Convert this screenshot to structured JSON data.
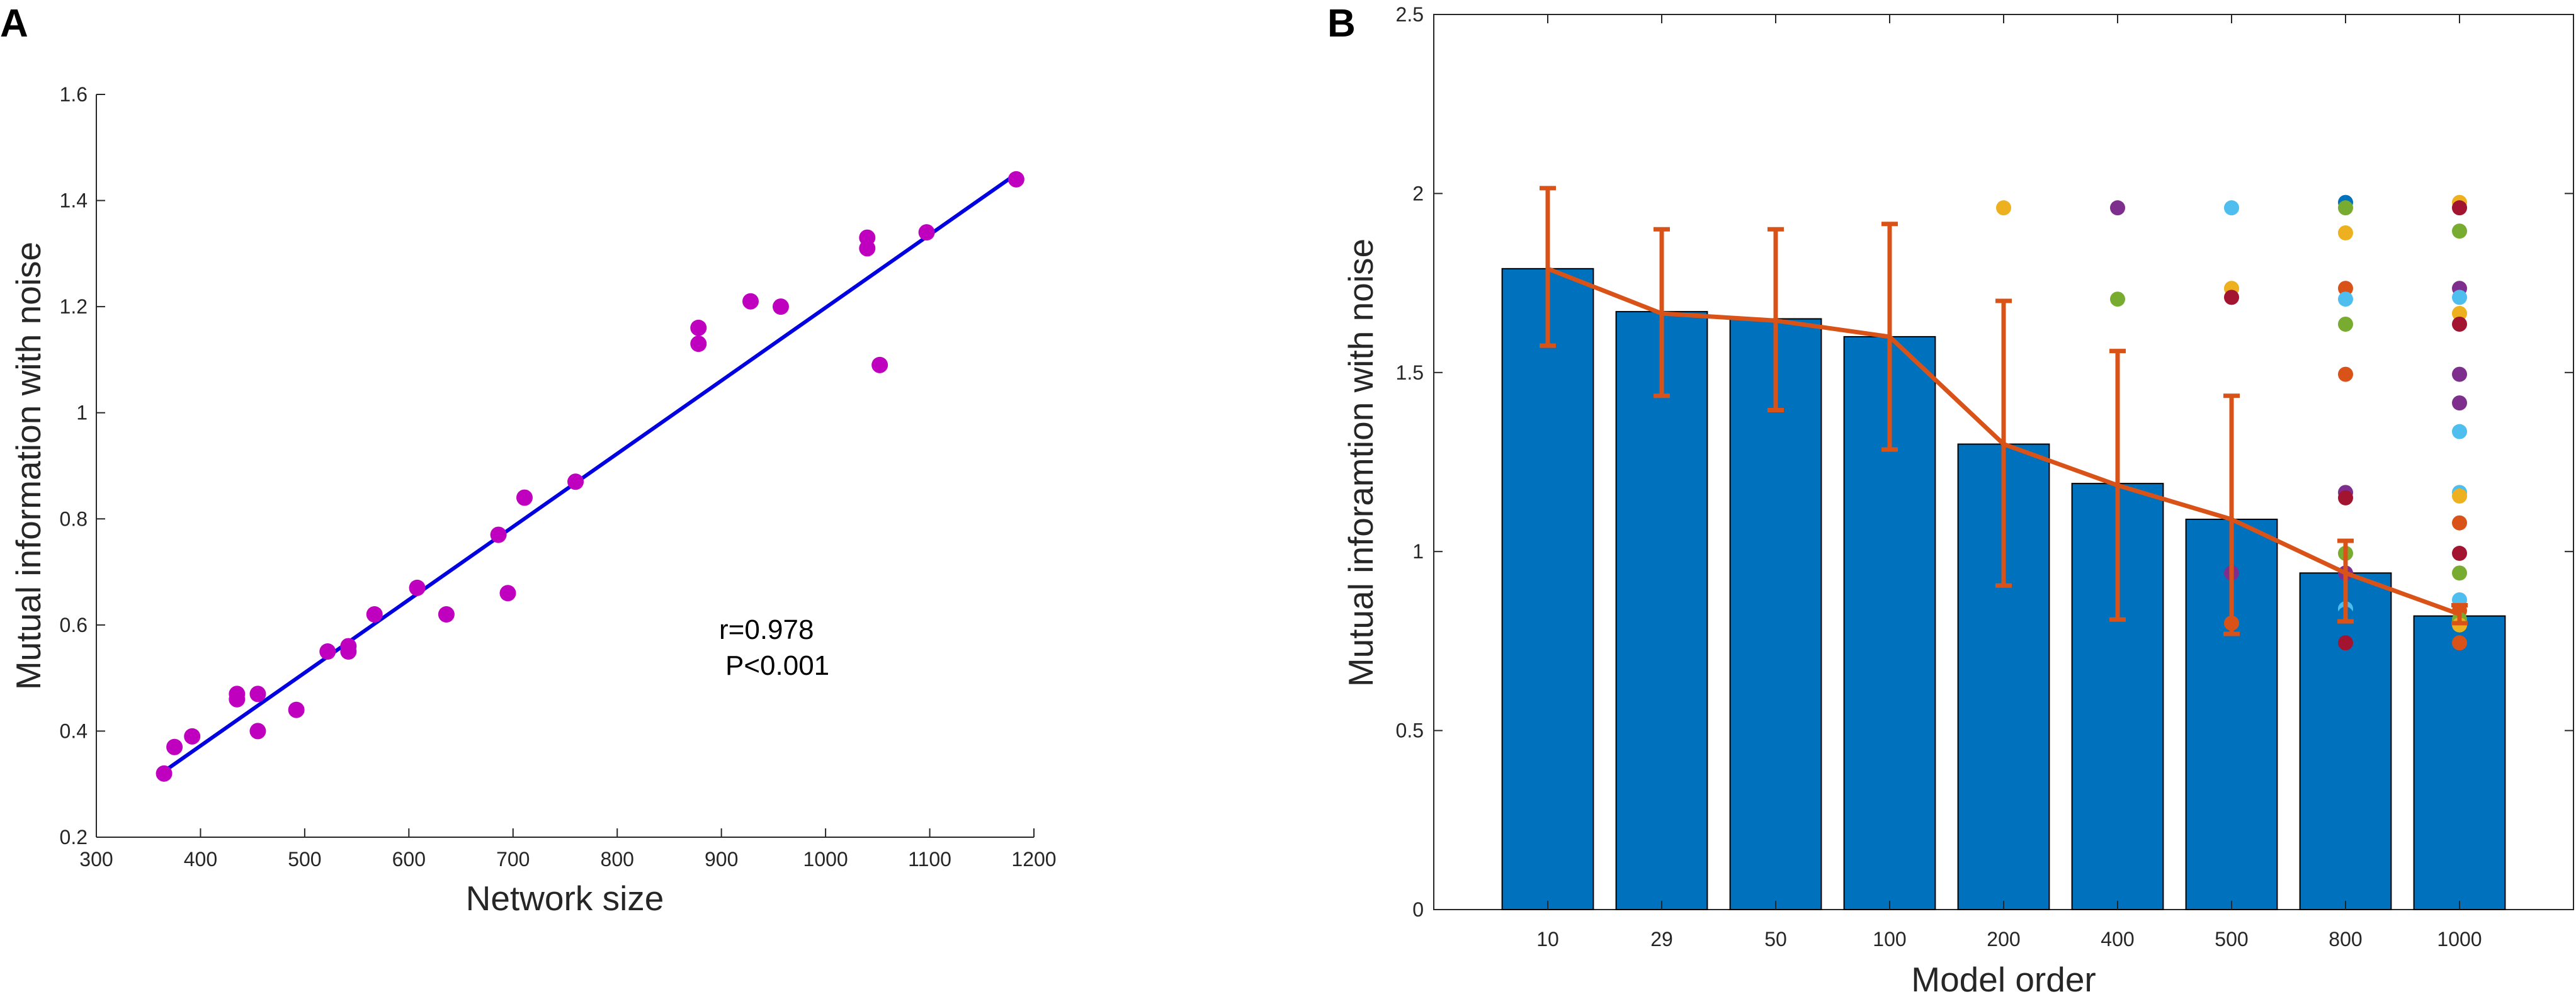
{
  "colors": {
    "scatter": "#bf00bf",
    "fit_line": "#0000e0",
    "bar_fill": "#0072bd",
    "mean_line": "#d95319",
    "axis": "#262626",
    "dot_palette": [
      "#0072bd",
      "#d95319",
      "#edb120",
      "#7e2f8e",
      "#77ac30",
      "#4dbeee",
      "#a2142f"
    ]
  },
  "chart_data": [
    {
      "panel_label": "A",
      "type": "scatter",
      "title": "",
      "xlabel": "Network size",
      "ylabel": "Mutual information with noise",
      "xlim": [
        300,
        1200
      ],
      "ylim": [
        0.2,
        1.6
      ],
      "xticks": [
        300,
        400,
        500,
        600,
        700,
        800,
        900,
        1000,
        1100,
        1200
      ],
      "yticks": [
        0.2,
        0.4,
        0.6,
        0.8,
        1,
        1.2,
        1.4,
        1.6
      ],
      "xtick_labels": [
        "300",
        "400",
        "500",
        "600",
        "700",
        "800",
        "900",
        "1000",
        "1100",
        "1200"
      ],
      "ytick_labels": [
        "0.2",
        "0.4",
        "0.6",
        "0.8",
        "1",
        "1.2",
        "1.4",
        "1.6"
      ],
      "points": [
        {
          "x": 365,
          "y": 0.32
        },
        {
          "x": 375,
          "y": 0.37
        },
        {
          "x": 392,
          "y": 0.39
        },
        {
          "x": 435,
          "y": 0.47
        },
        {
          "x": 435,
          "y": 0.46
        },
        {
          "x": 455,
          "y": 0.47
        },
        {
          "x": 455,
          "y": 0.4
        },
        {
          "x": 492,
          "y": 0.44
        },
        {
          "x": 522,
          "y": 0.55
        },
        {
          "x": 542,
          "y": 0.56
        },
        {
          "x": 542,
          "y": 0.55
        },
        {
          "x": 567,
          "y": 0.62
        },
        {
          "x": 608,
          "y": 0.67
        },
        {
          "x": 636,
          "y": 0.62
        },
        {
          "x": 686,
          "y": 0.77
        },
        {
          "x": 695,
          "y": 0.66
        },
        {
          "x": 711,
          "y": 0.84
        },
        {
          "x": 760,
          "y": 0.87
        },
        {
          "x": 878,
          "y": 1.16
        },
        {
          "x": 878,
          "y": 1.13
        },
        {
          "x": 928,
          "y": 1.21
        },
        {
          "x": 957,
          "y": 1.2
        },
        {
          "x": 1040,
          "y": 1.33
        },
        {
          "x": 1040,
          "y": 1.31
        },
        {
          "x": 1052,
          "y": 1.09
        },
        {
          "x": 1097,
          "y": 1.34
        },
        {
          "x": 1183,
          "y": 1.44
        }
      ],
      "fit_line": {
        "x": [
          362,
          1183
        ],
        "y": [
          0.32,
          1.45
        ]
      },
      "annotation_lines": [
        "r=0.978",
        "P<0.001"
      ]
    },
    {
      "panel_label": "B",
      "type": "bar",
      "title": "",
      "xlabel": "Model order",
      "ylabel": "Mutual inforamtion with noise",
      "categories": [
        "10",
        "29",
        "50",
        "100",
        "200",
        "400",
        "500",
        "800",
        "1000"
      ],
      "values": [
        1.79,
        1.67,
        1.65,
        1.6,
        1.3,
        1.19,
        1.09,
        0.94,
        0.82
      ],
      "ylim": [
        0,
        2.5
      ],
      "yticks": [
        0,
        0.5,
        1,
        1.5,
        2,
        2.5
      ],
      "ytick_labels": [
        "0",
        "0.5",
        "1",
        "1.5",
        "2",
        "2.5"
      ],
      "mean_line": [
        1.79,
        1.665,
        1.645,
        1.6,
        1.3,
        1.185,
        1.09,
        0.94,
        0.825
      ],
      "error_low": [
        1.575,
        1.435,
        1.395,
        1.285,
        0.905,
        0.81,
        0.77,
        0.805,
        0.8
      ],
      "error_high": [
        2.015,
        1.9,
        1.9,
        1.915,
        1.7,
        1.56,
        1.435,
        1.03,
        0.85
      ],
      "dots": [
        {
          "category": "200",
          "points": [
            [
              1.96,
              2
            ]
          ]
        },
        {
          "category": "400",
          "points": [
            [
              1.96,
              3
            ],
            [
              1.705,
              4
            ]
          ]
        },
        {
          "category": "500",
          "points": [
            [
              1.96,
              5
            ],
            [
              1.735,
              2
            ],
            [
              1.71,
              6
            ],
            [
              0.94,
              3
            ],
            [
              0.8,
              1
            ]
          ]
        },
        {
          "category": "800",
          "points": [
            [
              1.975,
              0
            ],
            [
              1.96,
              4
            ],
            [
              1.89,
              2
            ],
            [
              1.735,
              1
            ],
            [
              1.705,
              5
            ],
            [
              1.635,
              4
            ],
            [
              1.495,
              1
            ],
            [
              1.165,
              3
            ],
            [
              1.15,
              6
            ],
            [
              0.995,
              4
            ],
            [
              0.94,
              3
            ],
            [
              0.84,
              5
            ],
            [
              0.825,
              0
            ],
            [
              0.745,
              6
            ]
          ]
        },
        {
          "category": "1000",
          "points": [
            [
              1.975,
              2
            ],
            [
              1.96,
              6
            ],
            [
              1.895,
              4
            ],
            [
              1.735,
              3
            ],
            [
              1.71,
              5
            ],
            [
              1.665,
              2
            ],
            [
              1.635,
              6
            ],
            [
              1.495,
              3
            ],
            [
              1.415,
              3
            ],
            [
              1.335,
              5
            ],
            [
              1.165,
              5
            ],
            [
              1.155,
              2
            ],
            [
              1.08,
              1
            ],
            [
              0.995,
              6
            ],
            [
              0.94,
              4
            ],
            [
              0.865,
              5
            ],
            [
              0.835,
              1
            ],
            [
              0.81,
              4
            ],
            [
              0.795,
              2
            ],
            [
              0.745,
              1
            ]
          ]
        }
      ]
    }
  ]
}
